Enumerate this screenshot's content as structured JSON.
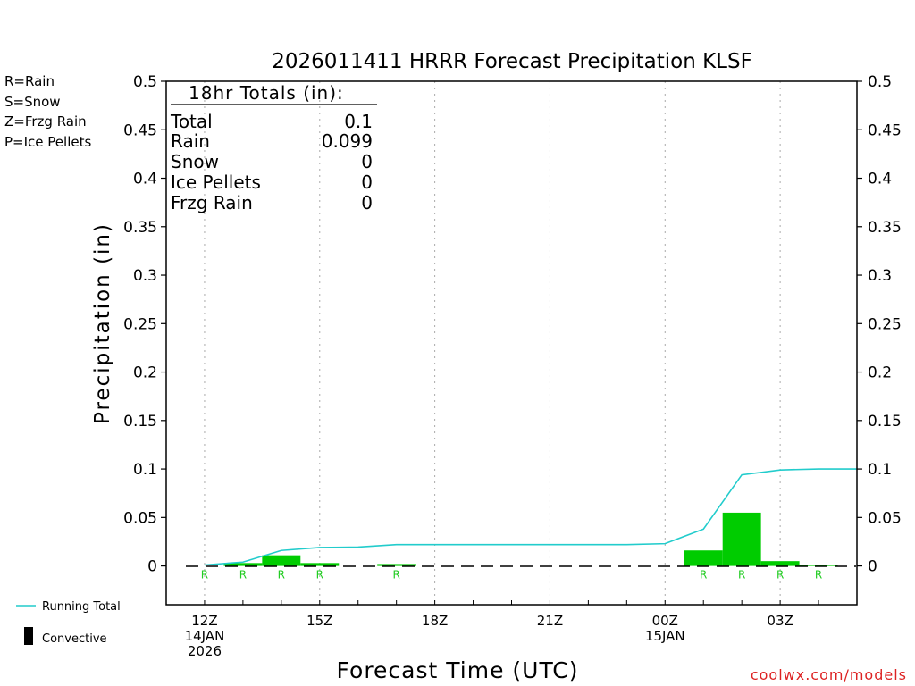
{
  "chart_data": {
    "type": "bar",
    "title": "2026011411 HRRR Forecast Precipitation KLSF",
    "xlabel": "Forecast Time (UTC)",
    "ylabel": "Precipitation (in)",
    "ylim": [
      -0.04,
      0.5
    ],
    "xlim": [
      -1,
      17
    ],
    "y_ticks": [
      0,
      0.05,
      0.1,
      0.15,
      0.2,
      0.25,
      0.3,
      0.35,
      0.4,
      0.45,
      0.5
    ],
    "y_tick_labels": [
      "0",
      "0.05",
      "0.1",
      "0.15",
      "0.2",
      "0.25",
      "0.3",
      "0.35",
      "0.4",
      "0.45",
      "0.5"
    ],
    "x_ticks": [
      {
        "hour": 0,
        "lines": [
          "12Z",
          "14JAN",
          "2026"
        ]
      },
      {
        "hour": 3,
        "lines": [
          "15Z"
        ]
      },
      {
        "hour": 6,
        "lines": [
          "18Z"
        ]
      },
      {
        "hour": 9,
        "lines": [
          "21Z"
        ]
      },
      {
        "hour": 12,
        "lines": [
          "00Z",
          "15JAN"
        ]
      },
      {
        "hour": 15,
        "lines": [
          "03Z"
        ]
      }
    ],
    "bars": [
      {
        "hour": 1,
        "value": 0.003
      },
      {
        "hour": 2,
        "value": 0.011
      },
      {
        "hour": 3,
        "value": 0.003
      },
      {
        "hour": 5,
        "value": 0.002
      },
      {
        "hour": 13,
        "value": 0.016
      },
      {
        "hour": 14,
        "value": 0.055
      },
      {
        "hour": 15,
        "value": 0.005
      },
      {
        "hour": 16,
        "value": 0.001
      }
    ],
    "running_total": {
      "hours": [
        0,
        1,
        2,
        3,
        4,
        5,
        6,
        7,
        8,
        9,
        10,
        11,
        12,
        13,
        14,
        15,
        16,
        17
      ],
      "values": [
        0.001,
        0.004,
        0.016,
        0.019,
        0.0195,
        0.022,
        0.022,
        0.022,
        0.022,
        0.022,
        0.022,
        0.022,
        0.023,
        0.038,
        0.094,
        0.099,
        0.1,
        0.1
      ]
    },
    "ptype_markers": [
      {
        "hour": 0,
        "label": "R"
      },
      {
        "hour": 1,
        "label": "R"
      },
      {
        "hour": 2,
        "label": "R"
      },
      {
        "hour": 3,
        "label": "R"
      },
      {
        "hour": 5,
        "label": "R"
      },
      {
        "hour": 13,
        "label": "R"
      },
      {
        "hour": 14,
        "label": "R"
      },
      {
        "hour": 15,
        "label": "R"
      },
      {
        "hour": 16,
        "label": "R"
      }
    ],
    "totals_box": {
      "heading": "18hr Totals (in):",
      "rows": [
        {
          "label": "Total",
          "value": "0.1"
        },
        {
          "label": "Rain",
          "value": "0.099"
        },
        {
          "label": "Snow",
          "value": "0"
        },
        {
          "label": "Ice Pellets",
          "value": "0"
        },
        {
          "label": "Frzg Rain",
          "value": "0"
        }
      ]
    },
    "ptype_legend": [
      {
        "label": "R=Rain",
        "color": "#22dd22"
      },
      {
        "label": "S=Snow",
        "color": "#3355ee"
      },
      {
        "label": "Z=Frzg Rain",
        "color": "#ee8833"
      },
      {
        "label": "P=Ice Pellets",
        "color": "#ee1199"
      }
    ],
    "series_legend": {
      "running_total_label": "Running Total",
      "convective_label": "Convective"
    },
    "colors": {
      "bar": "#00cc00",
      "running_total": "#22cccc",
      "marker": "#22cc22",
      "grid": "#aaaaaa",
      "axis": "#000000"
    }
  },
  "credit": "coolwx.com/models"
}
